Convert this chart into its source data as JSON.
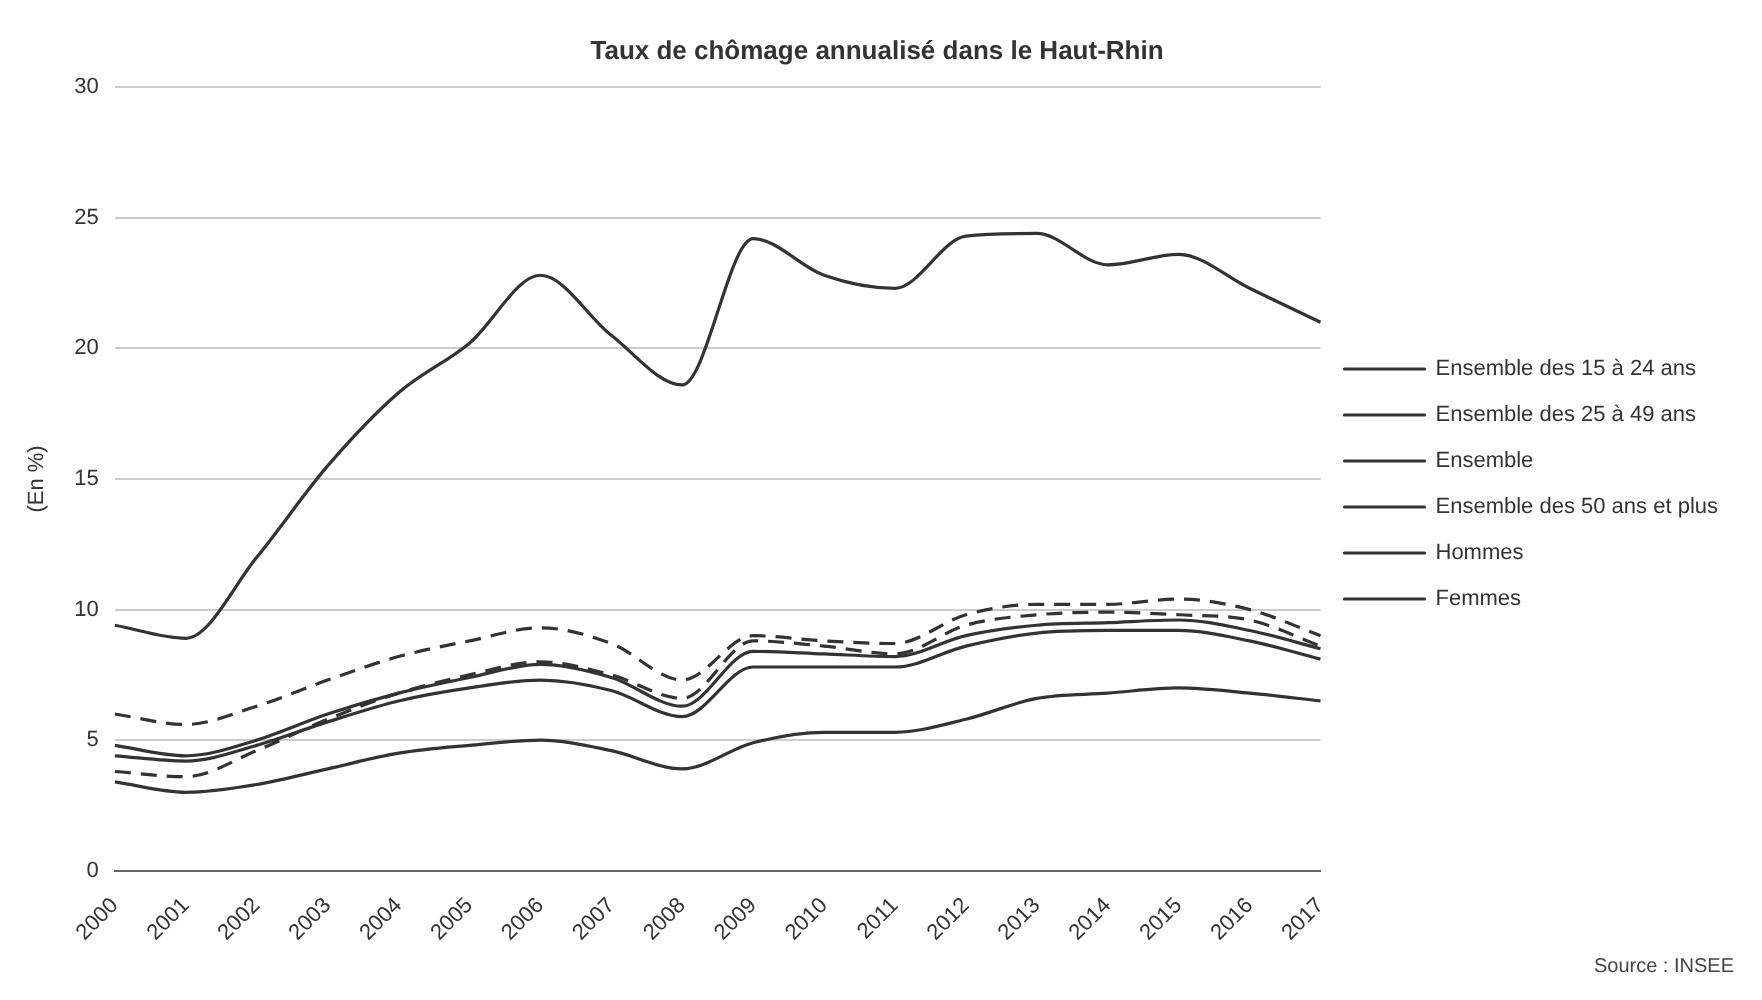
{
  "chart_data": {
    "type": "line",
    "title": "Taux de chômage annualisé dans le Haut-Rhin",
    "ylabel": "(En %)",
    "categories": [
      "2000",
      "2001",
      "2002",
      "2003",
      "2004",
      "2005",
      "2006",
      "2007",
      "2008",
      "2009",
      "2010",
      "2011",
      "2012",
      "2013",
      "2014",
      "2015",
      "2016",
      "2017"
    ],
    "series": [
      {
        "name": "Ensemble des 15 à 24 ans",
        "color": "#333333",
        "values": [
          9.4,
          8.9,
          12.0,
          15.5,
          18.3,
          20.2,
          22.8,
          20.5,
          18.6,
          24.2,
          22.8,
          22.3,
          24.3,
          24.4,
          23.2,
          23.6,
          22.3,
          21.0
        ]
      },
      {
        "name": "Ensemble des 25 à 49 ans",
        "color": "#333333",
        "values": [
          4.8,
          4.4,
          5.0,
          6.0,
          6.8,
          7.4,
          7.9,
          7.4,
          6.3,
          8.4,
          8.3,
          8.2,
          9.0,
          9.4,
          9.5,
          9.6,
          9.2,
          8.5
        ]
      },
      {
        "name": "Ensemble",
        "color": "#333333",
        "values": [
          4.4,
          4.2,
          4.8,
          5.7,
          6.5,
          7.0,
          7.3,
          6.9,
          5.9,
          7.8,
          7.8,
          7.8,
          8.6,
          9.1,
          9.2,
          9.2,
          8.8,
          8.1
        ]
      },
      {
        "name": "Ensemble des 50 ans et plus",
        "color": "#333333",
        "values": [
          3.4,
          3.0,
          3.3,
          3.9,
          4.5,
          4.8,
          5.0,
          4.6,
          3.9,
          4.9,
          5.3,
          5.3,
          5.8,
          6.6,
          6.8,
          7.0,
          6.8,
          6.5
        ]
      },
      {
        "name": "Hommes",
        "color": "#333333",
        "line_style": "dashed",
        "values": [
          3.8,
          3.6,
          4.6,
          5.8,
          6.8,
          7.5,
          8.0,
          7.5,
          6.6,
          8.8,
          8.6,
          8.3,
          9.4,
          9.8,
          9.9,
          9.8,
          9.6,
          8.6
        ]
      },
      {
        "name": "Femmes",
        "color": "#333333",
        "line_style": "dashed",
        "values": [
          6.0,
          5.6,
          6.3,
          7.3,
          8.2,
          8.8,
          9.3,
          8.7,
          7.3,
          9.0,
          8.8,
          8.7,
          9.8,
          10.2,
          10.2,
          10.4,
          10.0,
          9.0
        ]
      }
    ],
    "ylim": [
      0,
      30
    ],
    "yticks": [
      0,
      5,
      10,
      15,
      20,
      25,
      30
    ],
    "grid": "y",
    "legend": "right",
    "marker": "none",
    "line_style": "solid",
    "annotations": [
      "Source : INSEE"
    ]
  }
}
